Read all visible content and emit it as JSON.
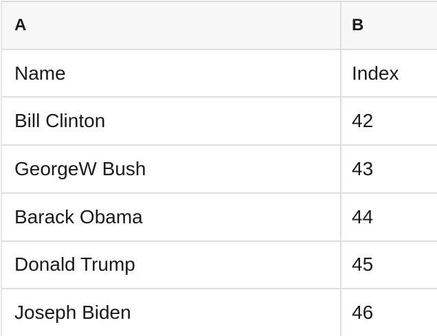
{
  "table": {
    "columns": [
      {
        "key": "A",
        "label": "A"
      },
      {
        "key": "B",
        "label": "B"
      }
    ],
    "rows": [
      {
        "a": "Name",
        "b": "Index"
      },
      {
        "a": "Bill Clinton",
        "b": "42"
      },
      {
        "a": "GeorgeW Bush",
        "b": "43"
      },
      {
        "a": "Barack Obama",
        "b": "44"
      },
      {
        "a": "Donald Trump",
        "b": "45"
      },
      {
        "a": "Joseph Biden",
        "b": "46"
      }
    ]
  },
  "colors": {
    "header_bg": "#f7f7f7",
    "grid_border": "#dedede",
    "text": "#1a1a1a"
  }
}
